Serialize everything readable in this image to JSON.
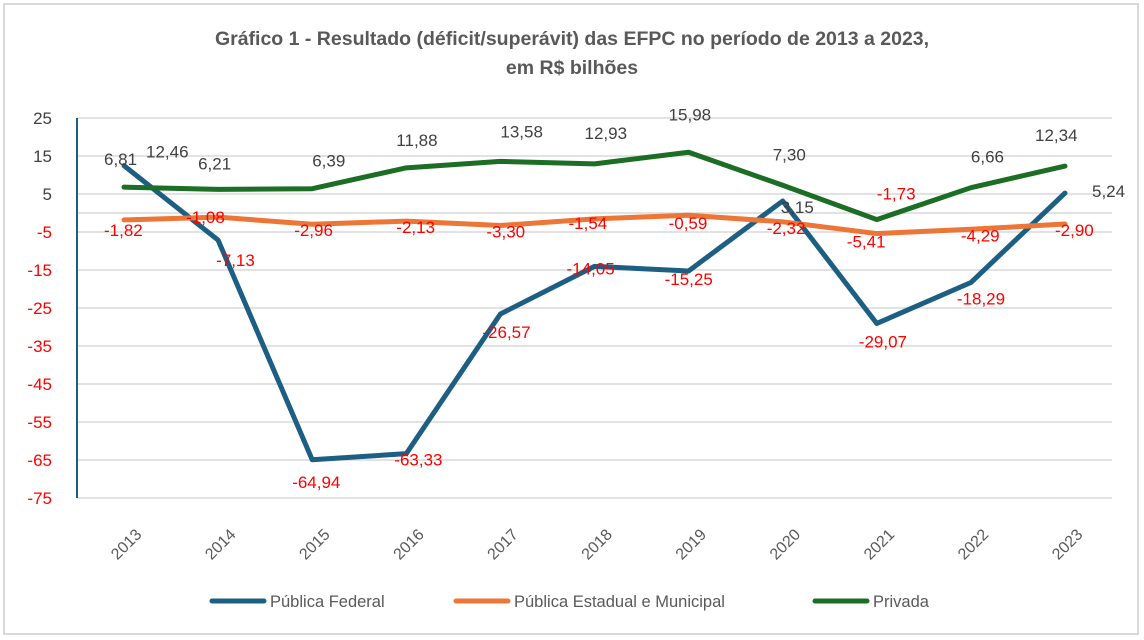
{
  "chart_data": {
    "type": "line",
    "title_line1": "Gráfico 1 - Resultado (déficit/superávit) das EFPC no período de 2013 a 2023,",
    "title_line2": "em R$ bilhões",
    "xlabel": "",
    "ylabel": "",
    "x": [
      "2013",
      "2014",
      "2015",
      "2016",
      "2017",
      "2018",
      "2019",
      "2020",
      "2021",
      "2022",
      "2023"
    ],
    "ylim": [
      -75,
      25
    ],
    "yticks": [
      25,
      15,
      5,
      -5,
      -15,
      -25,
      -35,
      -45,
      -55,
      -65,
      -75
    ],
    "grid": true,
    "legend_position": "bottom",
    "series": [
      {
        "name": "Pública Federal",
        "color": "#1c5f82",
        "values": [
          12.46,
          -7.13,
          -64.94,
          -63.33,
          -26.57,
          -14.05,
          -15.25,
          3.15,
          -29.07,
          -18.29,
          5.24
        ],
        "labels": [
          "12,46",
          "-7,13",
          "-64,94",
          "-63,33",
          "-26,57",
          "-14,05",
          "-15,25",
          "3,15",
          "-29,07",
          "-18,29",
          "5,24"
        ]
      },
      {
        "name": "Pública Estadual e Municipal",
        "color": "#ed7536",
        "values": [
          -1.82,
          -1.08,
          -2.96,
          -2.13,
          -3.3,
          -1.54,
          -0.59,
          -2.32,
          -5.41,
          -4.29,
          -2.9
        ],
        "labels": [
          "-1,82",
          "-1,08",
          "-2,96",
          "-2,13",
          "-3,30",
          "-1,54",
          "-0,59",
          "-2,32",
          "-5,41",
          "-4,29",
          "-2,90"
        ]
      },
      {
        "name": "Privada",
        "color": "#1b6e24",
        "values": [
          6.81,
          6.21,
          6.39,
          11.88,
          13.58,
          12.93,
          15.98,
          7.3,
          -1.73,
          6.66,
          12.34
        ],
        "labels": [
          "6,81",
          "6,21",
          "6,39",
          "11,88",
          "13,58",
          "12,93",
          "15,98",
          "7,30",
          "-1,73",
          "6,66",
          "12,34"
        ]
      }
    ],
    "colors": {
      "positive_label": "#404040",
      "negative_label": "#ff0000",
      "grid": "#d9d9d9",
      "axis": "#1c5f82"
    }
  }
}
